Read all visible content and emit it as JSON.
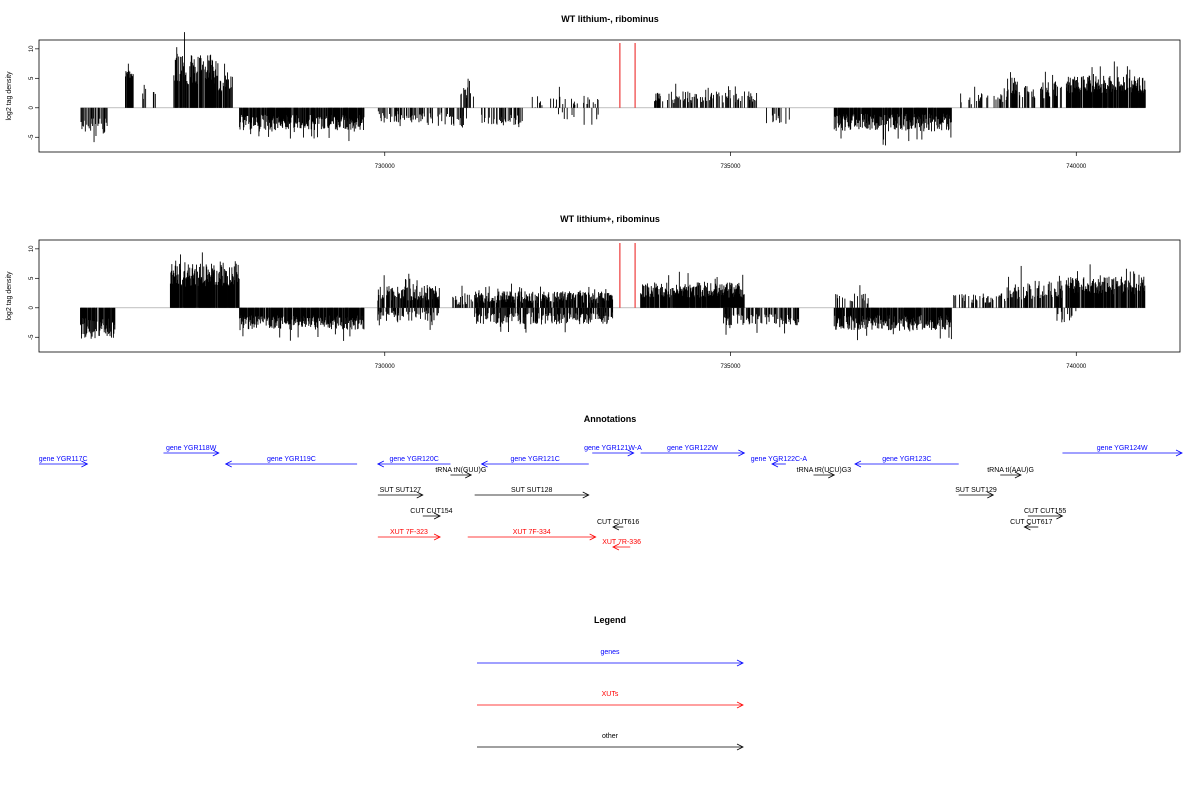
{
  "chart_data": [
    {
      "type": "bar",
      "title": "WT lithium-, ribominus",
      "ylabel": "log2 tag density",
      "xlabel": "",
      "xlim": [
        725000,
        741500
      ],
      "ylim": [
        -7.5,
        11.5
      ],
      "x_ticks": [
        "730000",
        "735000",
        "740000"
      ],
      "y_ticks": [
        "10",
        "5",
        "0",
        "-5"
      ],
      "grid": false,
      "highlight_positions": [
        733400,
        733620
      ],
      "highlight_color": "#ee3b3b",
      "segments": [
        {
          "start": 725600,
          "end": 726000,
          "mean": -3.0,
          "amp": 1.2,
          "density": 0.5
        },
        {
          "start": 726250,
          "end": 726400,
          "mean": 5.5,
          "amp": 0.8,
          "density": 0.8
        },
        {
          "start": 726500,
          "end": 726700,
          "mean": 2.5,
          "amp": 1.0,
          "density": 0.3
        },
        {
          "start": 726950,
          "end": 727600,
          "mean": 6.5,
          "amp": 2.5,
          "density": 0.9
        },
        {
          "start": 727600,
          "end": 727800,
          "mean": 4.0,
          "amp": 1.5,
          "density": 0.8
        },
        {
          "start": 727900,
          "end": 729700,
          "mean": -2.5,
          "amp": 1.3,
          "density": 0.85
        },
        {
          "start": 729900,
          "end": 730600,
          "mean": -1.5,
          "amp": 1.0,
          "density": 0.45
        },
        {
          "start": 730600,
          "end": 731200,
          "mean": -2.0,
          "amp": 1.2,
          "density": 0.3
        },
        {
          "start": 731100,
          "end": 731300,
          "mean": 2.5,
          "amp": 1.0,
          "density": 0.35
        },
        {
          "start": 731400,
          "end": 732000,
          "mean": -2.0,
          "amp": 1.0,
          "density": 0.4
        },
        {
          "start": 732000,
          "end": 733100,
          "mean": 1.0,
          "amp": 1.0,
          "density": 0.18
        },
        {
          "start": 732400,
          "end": 733100,
          "mean": -1.5,
          "amp": 0.8,
          "density": 0.12
        },
        {
          "start": 733900,
          "end": 735400,
          "mean": 1.8,
          "amp": 1.0,
          "density": 0.4
        },
        {
          "start": 735500,
          "end": 735900,
          "mean": -2.0,
          "amp": 1.0,
          "density": 0.2
        },
        {
          "start": 736500,
          "end": 738200,
          "mean": -2.5,
          "amp": 1.5,
          "density": 0.9
        },
        {
          "start": 738300,
          "end": 739000,
          "mean": 1.5,
          "amp": 1.0,
          "density": 0.25
        },
        {
          "start": 739000,
          "end": 739800,
          "mean": 3.0,
          "amp": 1.5,
          "density": 0.55
        },
        {
          "start": 739850,
          "end": 741000,
          "mean": 4.0,
          "amp": 1.5,
          "density": 0.9
        }
      ]
    },
    {
      "type": "bar",
      "title": "WT lithium+, ribominus",
      "ylabel": "log2 tag density",
      "xlabel": "",
      "xlim": [
        725000,
        741500
      ],
      "ylim": [
        -7.5,
        11.5
      ],
      "x_ticks": [
        "730000",
        "735000",
        "740000"
      ],
      "y_ticks": [
        "10",
        "5",
        "0",
        "-5"
      ],
      "grid": false,
      "highlight_positions": [
        733400,
        733620
      ],
      "highlight_color": "#ee3b3b",
      "segments": [
        {
          "start": 725600,
          "end": 726100,
          "mean": -3.5,
          "amp": 1.8,
          "density": 0.9
        },
        {
          "start": 726900,
          "end": 727900,
          "mean": 5.5,
          "amp": 2.0,
          "density": 0.95
        },
        {
          "start": 727900,
          "end": 729700,
          "mean": -2.5,
          "amp": 1.2,
          "density": 0.9
        },
        {
          "start": 729900,
          "end": 730800,
          "mean": 2.5,
          "amp": 1.3,
          "density": 0.75
        },
        {
          "start": 729900,
          "end": 730800,
          "mean": -1.5,
          "amp": 1.0,
          "density": 0.4
        },
        {
          "start": 730900,
          "end": 731300,
          "mean": 1.5,
          "amp": 1.0,
          "density": 0.4
        },
        {
          "start": 731300,
          "end": 733300,
          "mean": 1.8,
          "amp": 1.0,
          "density": 0.8
        },
        {
          "start": 731300,
          "end": 733300,
          "mean": -1.8,
          "amp": 1.0,
          "density": 0.6
        },
        {
          "start": 733700,
          "end": 735200,
          "mean": 3.0,
          "amp": 1.3,
          "density": 0.9
        },
        {
          "start": 734900,
          "end": 736000,
          "mean": -2.0,
          "amp": 1.0,
          "density": 0.6
        },
        {
          "start": 736500,
          "end": 737000,
          "mean": 1.5,
          "amp": 1.0,
          "density": 0.3
        },
        {
          "start": 736500,
          "end": 738200,
          "mean": -2.5,
          "amp": 1.3,
          "density": 0.9
        },
        {
          "start": 738200,
          "end": 739000,
          "mean": 1.5,
          "amp": 1.0,
          "density": 0.4
        },
        {
          "start": 739000,
          "end": 739800,
          "mean": 3.0,
          "amp": 1.6,
          "density": 0.6
        },
        {
          "start": 739700,
          "end": 740000,
          "mean": -1.5,
          "amp": 1.0,
          "density": 0.3
        },
        {
          "start": 739850,
          "end": 741000,
          "mean": 3.8,
          "amp": 1.5,
          "density": 0.9
        }
      ]
    }
  ],
  "annotations": {
    "title": "Annotations",
    "items": [
      {
        "label": "gene YGR117C",
        "start": 724700,
        "end": 725700,
        "dir": "right",
        "color": "#0000ff",
        "row": 1
      },
      {
        "label": "gene YGR118W",
        "start": 726800,
        "end": 727600,
        "dir": "right",
        "color": "#0000ff",
        "row": 0
      },
      {
        "label": "gene YGR119C",
        "start": 727700,
        "end": 729600,
        "dir": "left",
        "color": "#0000ff",
        "row": 1
      },
      {
        "label": "gene YGR120C",
        "start": 729900,
        "end": 730950,
        "dir": "left",
        "color": "#0000ff",
        "row": 1
      },
      {
        "label": "tRNA tN(GUU)G",
        "start": 730950,
        "end": 731250,
        "dir": "right",
        "color": "#000000",
        "row": 2
      },
      {
        "label": "gene YGR121C",
        "start": 731400,
        "end": 732950,
        "dir": "left",
        "color": "#0000ff",
        "row": 1
      },
      {
        "label": "gene YGR121W-A",
        "start": 733000,
        "end": 733600,
        "dir": "right",
        "color": "#0000ff",
        "row": 0
      },
      {
        "label": "gene YGR122W",
        "start": 733700,
        "end": 735200,
        "dir": "right",
        "color": "#0000ff",
        "row": 0
      },
      {
        "label": "gene YGR122C-A",
        "start": 735600,
        "end": 735800,
        "dir": "left",
        "color": "#0000ff",
        "row": 1
      },
      {
        "label": "tRNA tR(UCU)G3",
        "start": 736200,
        "end": 736500,
        "dir": "right",
        "color": "#000000",
        "row": 2
      },
      {
        "label": "gene YGR123C",
        "start": 736800,
        "end": 738300,
        "dir": "left",
        "color": "#0000ff",
        "row": 1
      },
      {
        "label": "tRNA tI(AAU)G",
        "start": 738900,
        "end": 739200,
        "dir": "right",
        "color": "#000000",
        "row": 2
      },
      {
        "label": "gene YGR124W",
        "start": 739800,
        "end": 741600,
        "dir": "right",
        "color": "#0000ff",
        "row": 0
      },
      {
        "label": "SUT SUT127",
        "start": 729900,
        "end": 730550,
        "dir": "right",
        "color": "#000000",
        "row": 3
      },
      {
        "label": "SUT SUT128",
        "start": 731300,
        "end": 732950,
        "dir": "right",
        "color": "#000000",
        "row": 3
      },
      {
        "label": "SUT SUT129",
        "start": 738300,
        "end": 738800,
        "dir": "right",
        "color": "#000000",
        "row": 3
      },
      {
        "label": "CUT CUT154",
        "start": 730550,
        "end": 730800,
        "dir": "right",
        "color": "#000000",
        "row": 4
      },
      {
        "label": "CUT CUT616",
        "start": 733300,
        "end": 733450,
        "dir": "left",
        "color": "#000000",
        "row": 5
      },
      {
        "label": "CUT CUT155",
        "start": 739300,
        "end": 739800,
        "dir": "right",
        "color": "#000000",
        "row": 4
      },
      {
        "label": "CUT CUT617",
        "start": 739250,
        "end": 739450,
        "dir": "left",
        "color": "#000000",
        "row": 5
      },
      {
        "label": "XUT 7F-323",
        "start": 729900,
        "end": 730800,
        "dir": "right",
        "color": "#ff0000",
        "row": 6
      },
      {
        "label": "XUT 7F-334",
        "start": 731200,
        "end": 733050,
        "dir": "right",
        "color": "#ff0000",
        "row": 6
      },
      {
        "label": "XUT 7R-336",
        "start": 733300,
        "end": 733550,
        "dir": "left",
        "color": "#ff0000",
        "row": 7
      }
    ]
  },
  "legend": {
    "title": "Legend",
    "items": [
      {
        "label": "genes",
        "color": "#0000ff"
      },
      {
        "label": "XUTs",
        "color": "#ff0000"
      },
      {
        "label": "other",
        "color": "#000000"
      }
    ]
  }
}
